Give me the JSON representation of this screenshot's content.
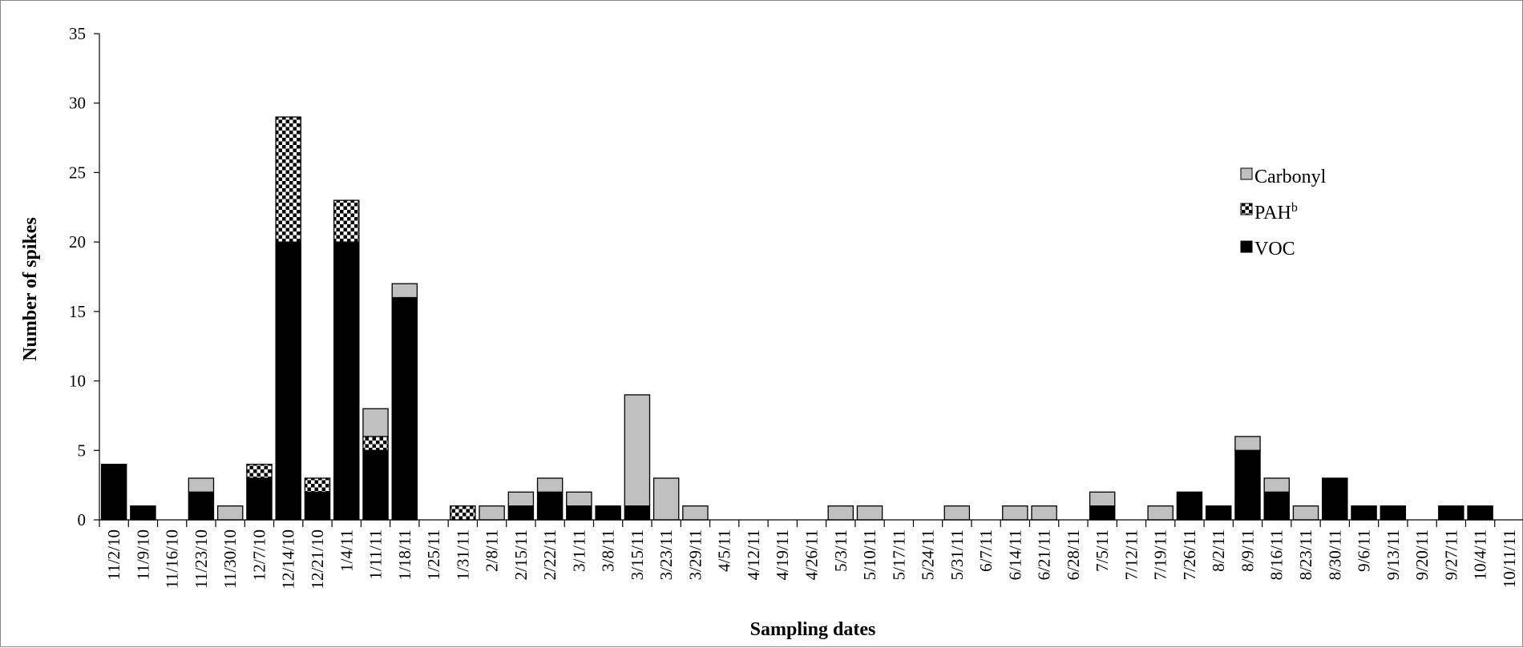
{
  "chart_data": {
    "type": "bar",
    "stacked": true,
    "xlabel": "Sampling dates",
    "ylabel": "Number of spikes",
    "ylim": [
      0,
      35
    ],
    "yticks": [
      0,
      5,
      10,
      15,
      20,
      25,
      30,
      35
    ],
    "legend_position": "right",
    "categories": [
      "11/2/10",
      "11/9/10",
      "11/16/10",
      "11/23/10",
      "11/30/10",
      "12/7/10",
      "12/14/10",
      "12/21/10",
      "1/4/11",
      "1/11/11",
      "1/18/11",
      "1/25/11",
      "1/31/11",
      "2/8/11",
      "2/15/11",
      "2/22/11",
      "3/1/11",
      "3/8/11",
      "3/15/11",
      "3/23/11",
      "3/29/11",
      "4/5/11",
      "4/12/11",
      "4/19/11",
      "4/26/11",
      "5/3/11",
      "5/10/11",
      "5/17/11",
      "5/24/11",
      "5/31/11",
      "6/7/11",
      "6/14/11",
      "6/21/11",
      "6/28/11",
      "7/5/11",
      "7/12/11",
      "7/19/11",
      "7/26/11",
      "8/2/11",
      "8/9/11",
      "8/16/11",
      "8/23/11",
      "8/30/11",
      "9/6/11",
      "9/13/11",
      "9/20/11",
      "9/27/11",
      "10/4/11",
      "10/11/11"
    ],
    "series": [
      {
        "name": "VOC",
        "color": "#000000",
        "pattern": "solid",
        "values": [
          4,
          1,
          0,
          2,
          0,
          3,
          20,
          2,
          20,
          5,
          16,
          0,
          0,
          0,
          1,
          2,
          1,
          1,
          1,
          0,
          0,
          0,
          0,
          0,
          0,
          0,
          0,
          0,
          0,
          0,
          0,
          0,
          0,
          0,
          1,
          0,
          0,
          2,
          1,
          5,
          2,
          0,
          3,
          1,
          1,
          0,
          1,
          1,
          0
        ]
      },
      {
        "name": "PAH",
        "superscript": "b",
        "color": "#000000",
        "pattern": "checkerboard",
        "values": [
          0,
          0,
          0,
          0,
          0,
          1,
          9,
          1,
          3,
          1,
          0,
          0,
          1,
          0,
          0,
          0,
          0,
          0,
          0,
          0,
          0,
          0,
          0,
          0,
          0,
          0,
          0,
          0,
          0,
          0,
          0,
          0,
          0,
          0,
          0,
          0,
          0,
          0,
          0,
          0,
          0,
          0,
          0,
          0,
          0,
          0,
          0,
          0,
          0
        ]
      },
      {
        "name": "Carbonyl",
        "color": "#c0c0c0",
        "pattern": "solid",
        "values": [
          0,
          0,
          0,
          1,
          1,
          0,
          0,
          0,
          0,
          2,
          1,
          0,
          0,
          1,
          1,
          1,
          1,
          0,
          8,
          3,
          1,
          0,
          0,
          0,
          0,
          1,
          1,
          0,
          0,
          1,
          0,
          1,
          1,
          0,
          1,
          0,
          1,
          0,
          0,
          1,
          1,
          1,
          0,
          0,
          0,
          0,
          0,
          0,
          0
        ]
      }
    ],
    "legend_order": [
      "Carbonyl",
      "PAH",
      "VOC"
    ]
  }
}
